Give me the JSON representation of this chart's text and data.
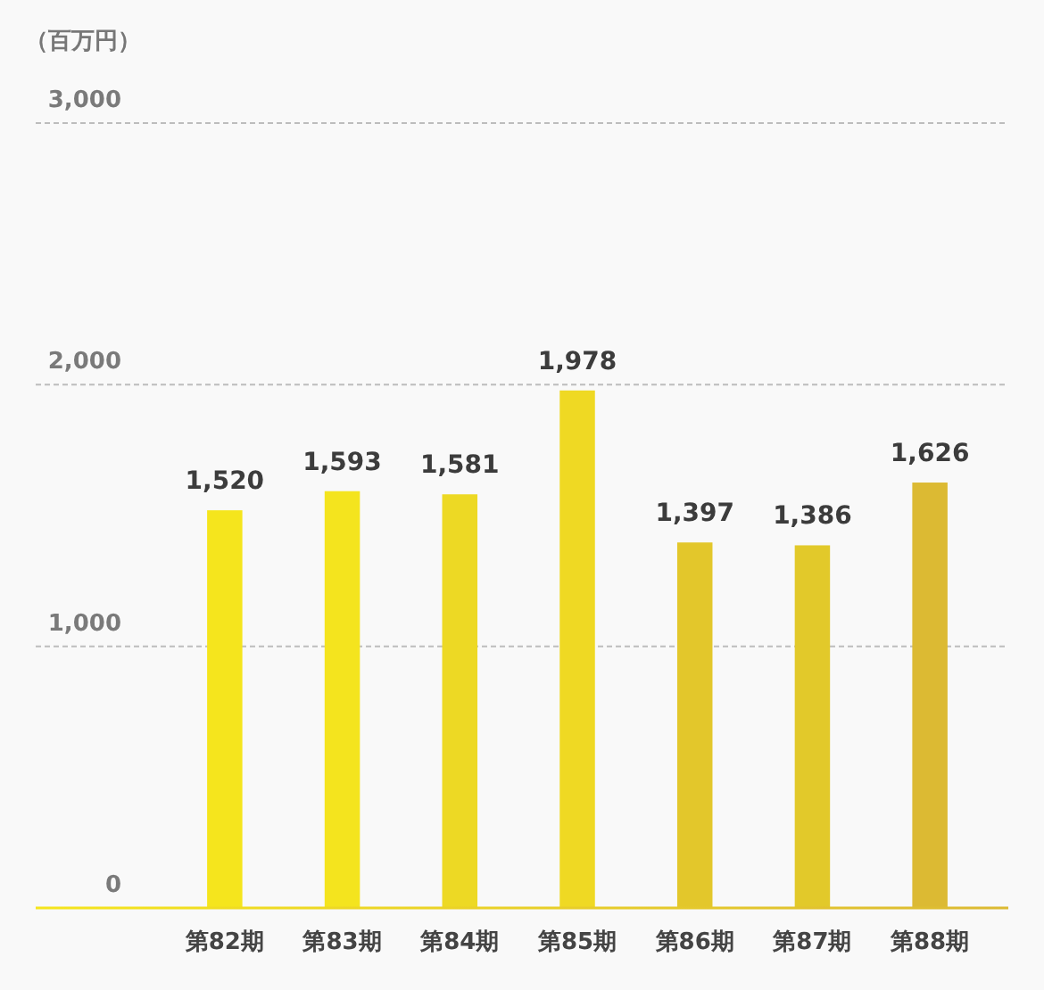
{
  "chart_data": {
    "type": "bar",
    "ylabel": "（百万円）",
    "categories": [
      "第82期",
      "第83期",
      "第84期",
      "第85期",
      "第86期",
      "第87期",
      "第88期"
    ],
    "values": [
      1520,
      1593,
      1581,
      1978,
      1397,
      1386,
      1626
    ],
    "colors": [
      "#f5e51d",
      "#f4e41e",
      "#edd924",
      "#efd923",
      "#e3c72b",
      "#e2c92a",
      "#dcba33"
    ],
    "value_labels": [
      "1,520",
      "1,593",
      "1,581",
      "1,978",
      "1,397",
      "1,386",
      "1,626"
    ],
    "ylim": [
      0,
      3000
    ],
    "yticks": [
      0,
      {
        "value": 1000,
        "label": "1,000"
      },
      {
        "value": 2000,
        "label": "2,000"
      },
      {
        "value": 3000,
        "label": "3,000"
      }
    ],
    "grid": "y"
  }
}
